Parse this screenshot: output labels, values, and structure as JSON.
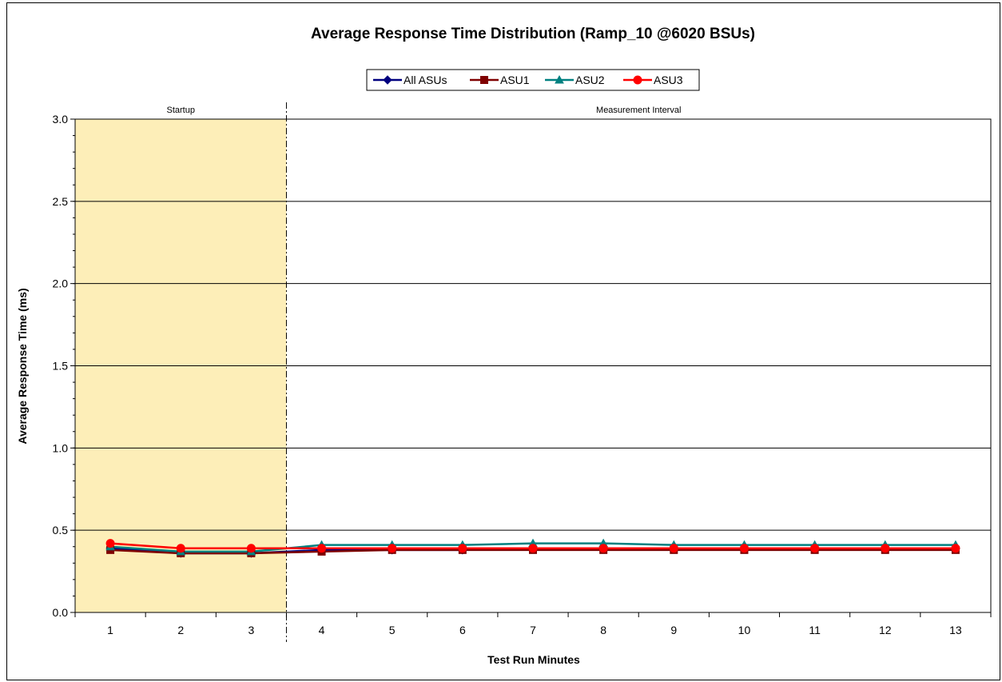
{
  "chart_data": {
    "type": "line",
    "title": "Average Response Time Distribution (Ramp_10 @6020 BSUs)",
    "xlabel": "Test Run Minutes",
    "ylabel": "Average Response Time (ms)",
    "x": [
      1,
      2,
      3,
      4,
      5,
      6,
      7,
      8,
      9,
      10,
      11,
      12,
      13
    ],
    "xticklabels": [
      "1",
      "2",
      "3",
      "4",
      "5",
      "6",
      "7",
      "8",
      "9",
      "10",
      "11",
      "12",
      "13"
    ],
    "ylim": [
      0,
      3
    ],
    "yticks": [
      0,
      0.5,
      1,
      1.5,
      2,
      2.5,
      3
    ],
    "yticklabels": [
      "0.0",
      "0.5",
      "1.0",
      "1.5",
      "2.0",
      "2.5",
      "3.0"
    ],
    "grid": "horizontal major gridlines",
    "legend_position": "top",
    "regions": [
      {
        "label": "Startup",
        "x_start": 0.5,
        "x_end": 3.5,
        "color": "#FDEEB8"
      },
      {
        "label": "Measurement Interval",
        "x_start": 3.5,
        "x_end": 13.5
      }
    ],
    "series": [
      {
        "name": "All ASUs",
        "color": "#00007F",
        "marker": "diamond",
        "values": [
          0.39,
          0.36,
          0.36,
          0.38,
          0.38,
          0.38,
          0.39,
          0.39,
          0.39,
          0.39,
          0.39,
          0.39,
          0.39
        ]
      },
      {
        "name": "ASU1",
        "color": "#7F0000",
        "marker": "square",
        "values": [
          0.38,
          0.36,
          0.36,
          0.37,
          0.38,
          0.38,
          0.38,
          0.38,
          0.38,
          0.38,
          0.38,
          0.38,
          0.38
        ]
      },
      {
        "name": "ASU2",
        "color": "#008080",
        "marker": "triangle",
        "values": [
          0.4,
          0.37,
          0.37,
          0.41,
          0.41,
          0.41,
          0.42,
          0.42,
          0.41,
          0.41,
          0.41,
          0.41,
          0.41
        ]
      },
      {
        "name": "ASU3",
        "color": "#FF0000",
        "marker": "circle",
        "values": [
          0.42,
          0.39,
          0.39,
          0.39,
          0.39,
          0.39,
          0.39,
          0.39,
          0.39,
          0.39,
          0.39,
          0.39,
          0.39
        ]
      }
    ]
  }
}
